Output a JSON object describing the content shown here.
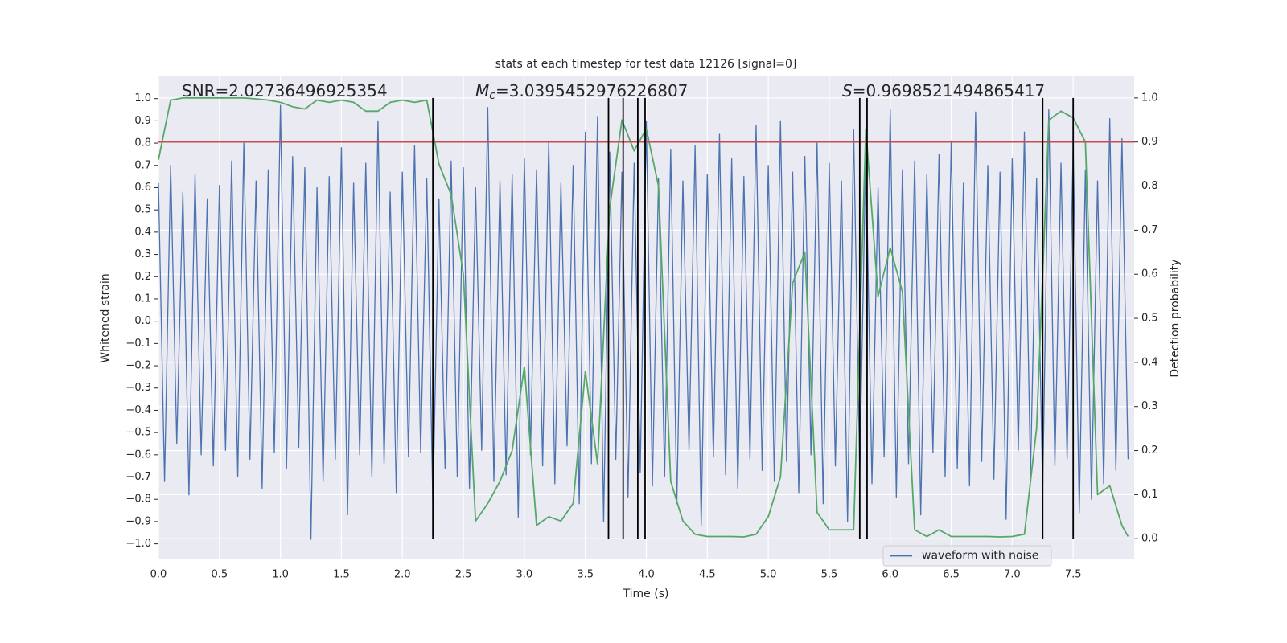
{
  "chart_data": {
    "type": "line",
    "title": "stats at each timestep for test data 12126 [signal=0]",
    "xlabel": "Time (s)",
    "ylabel": "Whitened strain",
    "y2label": "Detection probability",
    "xlim": [
      0,
      8
    ],
    "ylim": [
      -1.07,
      1.1
    ],
    "y2lim": [
      -0.047,
      1.049
    ],
    "grid": true,
    "legend_loc": "lower right",
    "xticks": [
      {
        "value": 0,
        "label": "0.0"
      },
      {
        "value": 0.5,
        "label": "0.5"
      },
      {
        "value": 1,
        "label": "1.0"
      },
      {
        "value": 1.5,
        "label": "1.5"
      },
      {
        "value": 2,
        "label": "2.0"
      },
      {
        "value": 2.5,
        "label": "2.5"
      },
      {
        "value": 3,
        "label": "3.0"
      },
      {
        "value": 3.5,
        "label": "3.5"
      },
      {
        "value": 4,
        "label": "4.0"
      },
      {
        "value": 4.5,
        "label": "4.5"
      },
      {
        "value": 5,
        "label": "5.0"
      },
      {
        "value": 5.5,
        "label": "5.5"
      },
      {
        "value": 6,
        "label": "6.0"
      },
      {
        "value": 6.5,
        "label": "6.5"
      },
      {
        "value": 7,
        "label": "7.0"
      },
      {
        "value": 7.5,
        "label": "7.5"
      }
    ],
    "yticks": [
      {
        "value": 1,
        "label": "1.0"
      },
      {
        "value": 0.9,
        "label": "0.9"
      },
      {
        "value": 0.8,
        "label": "0.8"
      },
      {
        "value": 0.7,
        "label": "0.7"
      },
      {
        "value": 0.6,
        "label": "0.6"
      },
      {
        "value": 0.5,
        "label": "0.5"
      },
      {
        "value": 0.4,
        "label": "0.4"
      },
      {
        "value": 0.3,
        "label": "0.3"
      },
      {
        "value": 0.2,
        "label": "0.2"
      },
      {
        "value": 0.1,
        "label": "0.1"
      },
      {
        "value": 0,
        "label": "0.0"
      },
      {
        "value": -0.1,
        "label": "−0.1"
      },
      {
        "value": -0.2,
        "label": "−0.2"
      },
      {
        "value": -0.3,
        "label": "−0.3"
      },
      {
        "value": -0.4,
        "label": "−0.4"
      },
      {
        "value": -0.5,
        "label": "−0.5"
      },
      {
        "value": -0.6,
        "label": "−0.6"
      },
      {
        "value": -0.7,
        "label": "−0.7"
      },
      {
        "value": -0.8,
        "label": "−0.8"
      },
      {
        "value": -0.9,
        "label": "−0.9"
      },
      {
        "value": -1,
        "label": "−1.0"
      }
    ],
    "y2ticks": [
      {
        "value": 0,
        "label": "0.0"
      },
      {
        "value": 0.1,
        "label": "0.1"
      },
      {
        "value": 0.2,
        "label": "0.2"
      },
      {
        "value": 0.3,
        "label": "0.3"
      },
      {
        "value": 0.4,
        "label": "0.4"
      },
      {
        "value": 0.5,
        "label": "0.5"
      },
      {
        "value": 0.6,
        "label": "0.6"
      },
      {
        "value": 0.7,
        "label": "0.7"
      },
      {
        "value": 0.8,
        "label": "0.8"
      },
      {
        "value": 0.9,
        "label": "0.9"
      },
      {
        "value": 1,
        "label": "1.0"
      }
    ],
    "annotations": [
      {
        "text": "SNR=2.02736496925354"
      },
      {
        "symbol": "M",
        "subscript": "c",
        "text": "=3.0395452976226807"
      },
      {
        "symbol": "S",
        "text": "=0.9698521494865417"
      }
    ],
    "series": [
      {
        "name": "waveform with noise",
        "color": "#4c72b0",
        "x": [
          0,
          0.05,
          0.1,
          0.15,
          0.2,
          0.25,
          0.3,
          0.35,
          0.4,
          0.45,
          0.5,
          0.55,
          0.6,
          0.65,
          0.7,
          0.75,
          0.8,
          0.85,
          0.9,
          0.95,
          1,
          1.05,
          1.1,
          1.15,
          1.2,
          1.25,
          1.3,
          1.35,
          1.4,
          1.45,
          1.5,
          1.55,
          1.6,
          1.65,
          1.7,
          1.75,
          1.8,
          1.85,
          1.9,
          1.95,
          2,
          2.05,
          2.1,
          2.15,
          2.2,
          2.25,
          2.3,
          2.35,
          2.4,
          2.45,
          2.5,
          2.55,
          2.6,
          2.65,
          2.7,
          2.75,
          2.8,
          2.85,
          2.9,
          2.95,
          3,
          3.05,
          3.1,
          3.15,
          3.2,
          3.25,
          3.3,
          3.35,
          3.4,
          3.45,
          3.5,
          3.55,
          3.6,
          3.65,
          3.7,
          3.75,
          3.8,
          3.85,
          3.9,
          3.95,
          4,
          4.05,
          4.1,
          4.15,
          4.2,
          4.25,
          4.3,
          4.35,
          4.4,
          4.45,
          4.5,
          4.55,
          4.6,
          4.65,
          4.7,
          4.75,
          4.8,
          4.85,
          4.9,
          4.95,
          5,
          5.05,
          5.1,
          5.15,
          5.2,
          5.25,
          5.3,
          5.35,
          5.4,
          5.45,
          5.5,
          5.55,
          5.6,
          5.65,
          5.7,
          5.75,
          5.8,
          5.85,
          5.9,
          5.95,
          6,
          6.05,
          6.1,
          6.15,
          6.2,
          6.25,
          6.3,
          6.35,
          6.4,
          6.45,
          6.5,
          6.55,
          6.6,
          6.65,
          6.7,
          6.75,
          6.8,
          6.85,
          6.9,
          6.95,
          7,
          7.05,
          7.1,
          7.15,
          7.2,
          7.25,
          7.3,
          7.35,
          7.4,
          7.45,
          7.5,
          7.55,
          7.6,
          7.65,
          7.7,
          7.75,
          7.8,
          7.85,
          7.9,
          7.95
        ],
        "values": [
          0.62,
          -0.72,
          0.7,
          -0.55,
          0.58,
          -0.78,
          0.66,
          -0.6,
          0.55,
          -0.65,
          0.61,
          -0.58,
          0.72,
          -0.7,
          0.8,
          -0.62,
          0.63,
          -0.75,
          0.68,
          -0.59,
          0.97,
          -0.66,
          0.74,
          -0.57,
          0.69,
          -0.98,
          0.6,
          -0.72,
          0.65,
          -0.62,
          0.78,
          -0.87,
          0.62,
          -0.6,
          0.71,
          -0.7,
          0.9,
          -0.64,
          0.58,
          -0.77,
          0.67,
          -0.61,
          0.79,
          -0.59,
          0.64,
          -0.83,
          0.55,
          -0.66,
          0.72,
          -0.7,
          0.69,
          -0.75,
          0.6,
          -0.58,
          0.96,
          -0.72,
          0.63,
          -0.69,
          0.66,
          -0.88,
          0.73,
          -0.6,
          0.68,
          -0.65,
          0.81,
          -0.73,
          0.62,
          -0.56,
          0.7,
          -0.82,
          0.85,
          -0.64,
          0.92,
          -0.9,
          0.76,
          -0.62,
          0.67,
          -0.79,
          0.71,
          -0.68,
          0.9,
          -0.74,
          0.64,
          -0.7,
          0.77,
          -0.82,
          0.63,
          -0.58,
          0.79,
          -0.92,
          0.66,
          -0.61,
          0.84,
          -0.69,
          0.73,
          -0.75,
          0.65,
          -0.62,
          0.88,
          -0.67,
          0.7,
          -0.72,
          0.9,
          -0.63,
          0.67,
          -0.77,
          0.74,
          -0.6,
          0.8,
          -0.82,
          0.71,
          -0.65,
          0.63,
          -0.9,
          0.86,
          -0.68,
          0.78,
          -0.73,
          0.6,
          -0.61,
          0.95,
          -0.79,
          0.68,
          -0.64,
          0.72,
          -0.87,
          0.66,
          -0.59,
          0.75,
          -0.7,
          0.81,
          -0.66,
          0.62,
          -0.74,
          0.94,
          -0.63,
          0.7,
          -0.71,
          0.67,
          -0.89,
          0.73,
          -0.58,
          0.85,
          -0.69,
          0.64,
          -0.76,
          0.95,
          -0.65,
          0.71,
          -0.62,
          0.79,
          -0.86,
          0.68,
          -0.8,
          0.63,
          -0.73,
          0.91,
          -0.67,
          0.82,
          -0.62
        ]
      },
      {
        "axis": "y2",
        "color": "#55a868",
        "x": [
          0,
          0.1,
          0.2,
          0.3,
          0.4,
          0.5,
          0.6,
          0.7,
          0.8,
          0.9,
          1,
          1.1,
          1.2,
          1.3,
          1.4,
          1.5,
          1.6,
          1.7,
          1.8,
          1.9,
          2,
          2.1,
          2.2,
          2.3,
          2.4,
          2.5,
          2.6,
          2.7,
          2.8,
          2.9,
          3,
          3.1,
          3.2,
          3.3,
          3.4,
          3.5,
          3.6,
          3.7,
          3.8,
          3.9,
          4,
          4.1,
          4.2,
          4.3,
          4.4,
          4.5,
          4.6,
          4.7,
          4.8,
          4.9,
          5,
          5.1,
          5.2,
          5.3,
          5.4,
          5.5,
          5.6,
          5.7,
          5.8,
          5.9,
          6,
          6.1,
          6.2,
          6.3,
          6.4,
          6.5,
          6.6,
          6.7,
          6.8,
          6.9,
          7,
          7.1,
          7.2,
          7.3,
          7.4,
          7.5,
          7.6,
          7.7,
          7.8,
          7.9,
          7.95
        ],
        "values": [
          0.86,
          0.995,
          1,
          1,
          1,
          1,
          1,
          1,
          0.998,
          0.995,
          0.99,
          0.98,
          0.975,
          0.995,
          0.99,
          0.995,
          0.99,
          0.97,
          0.97,
          0.99,
          0.995,
          0.99,
          0.995,
          0.85,
          0.78,
          0.6,
          0.04,
          0.08,
          0.13,
          0.2,
          0.39,
          0.03,
          0.05,
          0.04,
          0.08,
          0.38,
          0.17,
          0.75,
          0.95,
          0.88,
          0.93,
          0.8,
          0.13,
          0.04,
          0.01,
          0.005,
          0.005,
          0.005,
          0.004,
          0.01,
          0.05,
          0.14,
          0.58,
          0.65,
          0.06,
          0.02,
          0.02,
          0.02,
          0.93,
          0.55,
          0.66,
          0.56,
          0.02,
          0.005,
          0.02,
          0.005,
          0.005,
          0.005,
          0.005,
          0.004,
          0.005,
          0.01,
          0.25,
          0.95,
          0.97,
          0.955,
          0.9,
          0.1,
          0.12,
          0.03,
          0.005
        ]
      }
    ],
    "hline": {
      "value": 0.9,
      "axis": "y2",
      "color": "#c44e52"
    },
    "vlines": {
      "x": [
        2.25,
        3.69,
        3.81,
        3.93,
        3.99,
        5.75,
        5.81,
        7.25,
        7.5
      ],
      "range": [
        0,
        1
      ],
      "axis": "y2",
      "color": "#000000"
    }
  }
}
